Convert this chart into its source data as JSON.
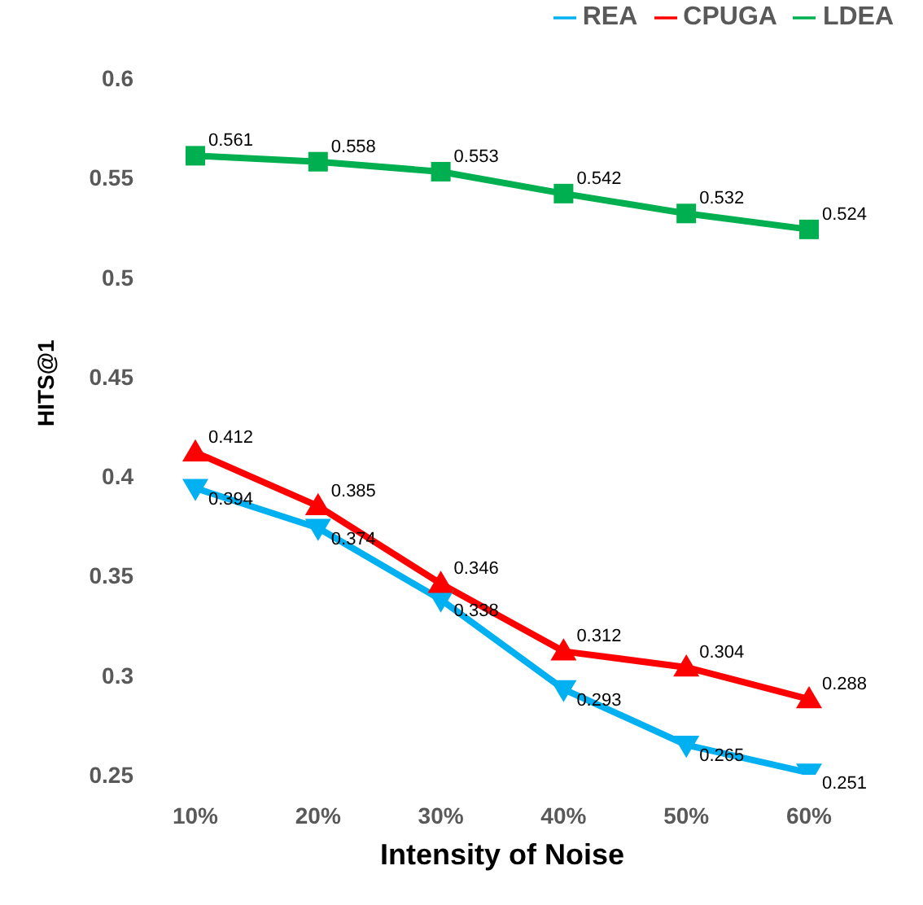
{
  "chart_data": {
    "type": "line",
    "xlabel": "Intensity of Noise",
    "ylabel": "HITS@1",
    "categories": [
      "10%",
      "20%",
      "30%",
      "40%",
      "50%",
      "60%"
    ],
    "series": [
      {
        "name": "REA",
        "color": "#00b0f0",
        "marker": "triangle-down",
        "values": [
          0.394,
          0.374,
          0.338,
          0.293,
          0.265,
          0.251
        ]
      },
      {
        "name": "CPUGA",
        "color": "#ff0000",
        "marker": "triangle",
        "values": [
          0.412,
          0.385,
          0.346,
          0.312,
          0.304,
          0.288
        ]
      },
      {
        "name": "LDEA",
        "color": "#00b050",
        "marker": "square",
        "values": [
          0.561,
          0.558,
          0.553,
          0.542,
          0.532,
          0.524
        ]
      }
    ],
    "ylim": [
      0.25,
      0.6
    ],
    "yticks": [
      0.25,
      0.3,
      0.35,
      0.4,
      0.45,
      0.5,
      0.55,
      0.6
    ],
    "grid": false,
    "legend": "top right",
    "data_labels": true,
    "line_style": "solid"
  }
}
